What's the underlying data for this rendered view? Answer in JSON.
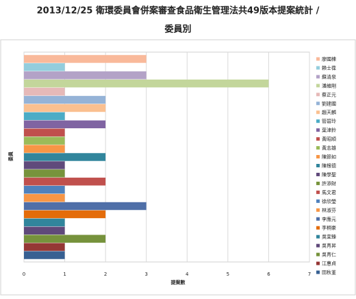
{
  "chart_data": {
    "type": "barh",
    "title": "2013/12/25 衛環委員會併案審查食品衛生管理法共49版本提案統計 /",
    "subtitle": "委員別",
    "x_label": "提案數",
    "y_label": "委員",
    "categories": [
      "廖國棟",
      "賴士葆",
      "蘇清泉",
      "潘維剛",
      "蔡正元",
      "劉建國",
      "趙天麟",
      "管碧玲",
      "葉津鈴",
      "黃昭順",
      "黃志雄",
      "陳節如",
      "陳根德",
      "陳學聖",
      "許添財",
      "馬文君",
      "徐欣瑩",
      "林淑芬",
      "李應元",
      "李桐豪",
      "吳宜臻",
      "吳育昇",
      "吳育仁",
      "江惠貞",
      "田秋堇"
    ],
    "values": [
      3,
      1,
      3,
      6,
      1,
      2,
      2,
      1,
      2,
      1,
      1,
      1,
      2,
      1,
      1,
      2,
      1,
      1,
      3,
      2,
      1,
      1,
      2,
      1,
      1
    ],
    "colors": [
      "#f9b99a",
      "#93cddd",
      "#b3a2c7",
      "#c3d69b",
      "#e6b9b8",
      "#95b3d7",
      "#fac090",
      "#4bacc6",
      "#8064a2",
      "#c0504d",
      "#9bbb59",
      "#f79646",
      "#31859c",
      "#604a7b",
      "#77933c",
      "#c0504d",
      "#4f81bd",
      "#f79646",
      "#4f6fa8",
      "#e46c0a",
      "#31859c",
      "#5f497a",
      "#76923c",
      "#953735",
      "#376092"
    ],
    "xlim": [
      0,
      7
    ],
    "xticks": [
      0,
      1,
      2,
      3,
      4,
      5,
      6,
      7
    ],
    "grid": true,
    "legend": "right"
  }
}
